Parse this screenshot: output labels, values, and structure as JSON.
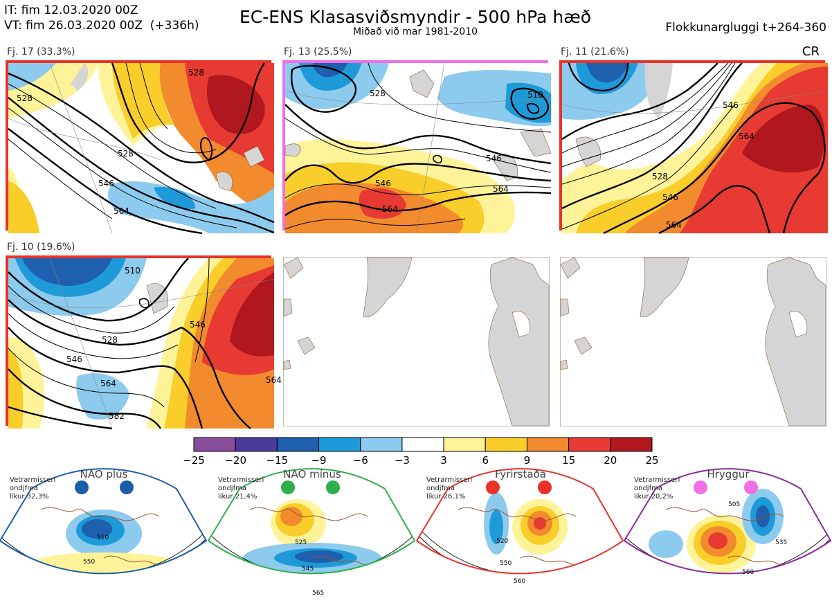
{
  "header": {
    "it_line": "IT: fim 12.03.2020 00Z",
    "vt_line": "VT: fim 26.03.2020 00Z  (+336h)",
    "title": "EC-ENS Klasasviðsmyndir - 500 hPa hæð",
    "subtitle": "Miðað við mar 1981-2010",
    "window": "Flokkunargluggi t+264-360",
    "corner": "CR"
  },
  "panels": [
    {
      "label": "Fj. 17 (33.3%)",
      "border": "#e8322a",
      "contours": [
        "528",
        "546",
        "564",
        "528",
        "528"
      ]
    },
    {
      "label": "Fj. 13 (25.5%)",
      "border": "#ef6fe6",
      "contours": [
        "528",
        "546",
        "564",
        "546",
        "564",
        "510"
      ]
    },
    {
      "label": "Fj. 11 (21.6%)",
      "border": "#e8322a",
      "contours": [
        "546",
        "564",
        "528",
        "546",
        "564"
      ]
    },
    {
      "label": "Fj. 10 (19.6%)",
      "border": "#e8322a",
      "contours": [
        "528",
        "546",
        "564",
        "582",
        "546",
        "564",
        "510"
      ]
    }
  ],
  "colorbar": {
    "colors": [
      "#8a4d9e",
      "#4a3a9a",
      "#1e5fae",
      "#1f9ad8",
      "#8ccbee",
      "#ffffff",
      "#fff39a",
      "#f9cd2a",
      "#f28a2e",
      "#e63a33",
      "#b0171f"
    ],
    "ticks": [
      "−25",
      "−20",
      "−15",
      "−9",
      "−6",
      "−3",
      "3",
      "6",
      "9",
      "15",
      "20",
      "25"
    ]
  },
  "regimes": [
    {
      "title": "NAO plús",
      "note": [
        "Vetrarmisseri",
        "ondjfma",
        "líkur 32,3%"
      ],
      "color": "#1a5ea8",
      "dot": "#1a5ea8",
      "labels": [
        "510",
        "550"
      ]
    },
    {
      "title": "NAO mínus",
      "note": [
        "Vetrarmisseri",
        "ondjfma",
        "líkur 21,4%"
      ],
      "color": "#2fae4a",
      "dot": "#2fae4a",
      "labels": [
        "525",
        "545",
        "565"
      ]
    },
    {
      "title": "Fyrirstaða",
      "note": [
        "Vetrarmisseri",
        "ondjfma",
        "líkur 26,1%"
      ],
      "color": "#e8322a",
      "dot": "#e8322a",
      "labels": [
        "520",
        "550",
        "560"
      ]
    },
    {
      "title": "Hryggur",
      "note": [
        "Vetrarmisseri",
        "ondjfma",
        "líkur 20,2%"
      ],
      "color": "#8a2a9a",
      "dot": "#ef6fe6",
      "labels": [
        "505",
        "535",
        "560"
      ]
    }
  ],
  "chart_data": {
    "type": "heatmap",
    "title": "EC-ENS Klasasviðsmyndir - 500 hPa hæð",
    "subtitle": "Miðað við mar 1981-2010",
    "legend_bins": [
      -25,
      -20,
      -15,
      -9,
      -6,
      -3,
      3,
      6,
      9,
      15,
      20,
      25
    ],
    "clusters": [
      {
        "name": "Fj. 17",
        "probability_pct": 33.3
      },
      {
        "name": "Fj. 13",
        "probability_pct": 25.5
      },
      {
        "name": "Fj. 11",
        "probability_pct": 21.6
      },
      {
        "name": "Fj. 10",
        "probability_pct": 19.6
      }
    ],
    "regimes": [
      {
        "name": "NAO plús",
        "probability_pct": 32.3
      },
      {
        "name": "NAO mínus",
        "probability_pct": 21.4
      },
      {
        "name": "Fyrirstaða",
        "probability_pct": 26.1
      },
      {
        "name": "Hryggur",
        "probability_pct": 20.2
      }
    ]
  }
}
